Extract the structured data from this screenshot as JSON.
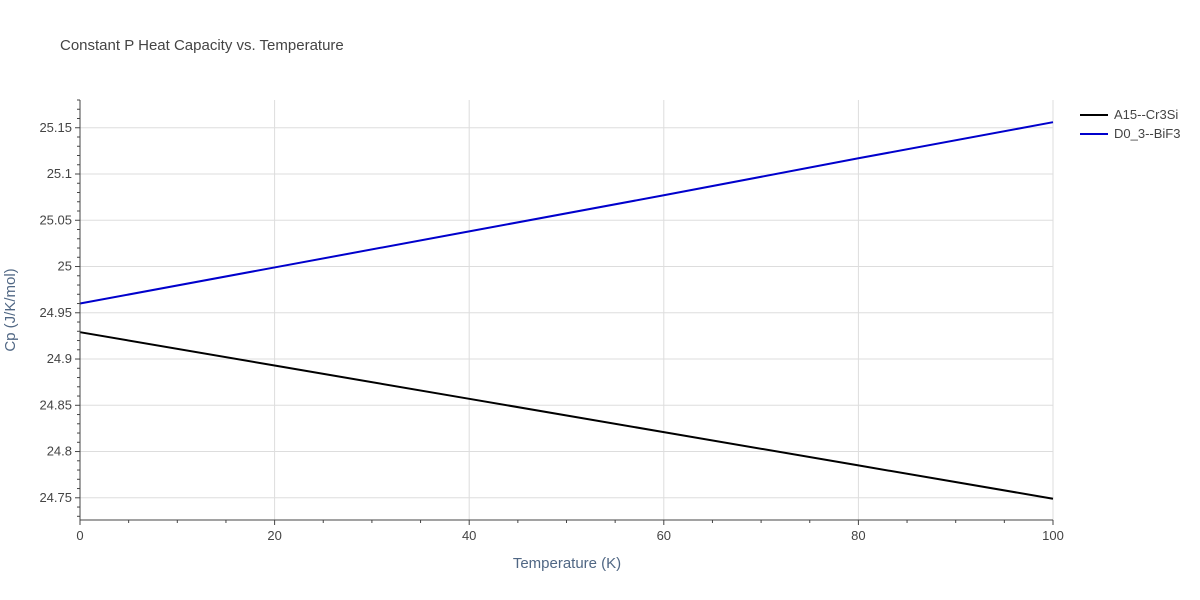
{
  "chart_data": {
    "type": "line",
    "title": "Constant P Heat Capacity vs. Temperature",
    "xlabel": "Temperature (K)",
    "ylabel": "Cp (J/K/mol)",
    "xlim": [
      0,
      100
    ],
    "ylim": [
      24.726,
      25.18
    ],
    "x_ticks": [
      0,
      20,
      40,
      60,
      80,
      100
    ],
    "x_tick_labels": [
      "0",
      "20",
      "40",
      "60",
      "80",
      "100"
    ],
    "y_ticks": [
      24.75,
      24.8,
      24.85,
      24.9,
      24.95,
      25,
      25.05,
      25.1,
      25.15
    ],
    "y_tick_labels": [
      "24.75",
      "24.8",
      "24.85",
      "24.9",
      "24.95",
      "25",
      "25.05",
      "25.1",
      "25.15"
    ],
    "grid": true,
    "legend_position": "top-right",
    "series": [
      {
        "name": "A15--Cr3Si",
        "color": "#000000",
        "x": [
          0,
          20,
          40,
          60,
          80,
          100
        ],
        "y": [
          24.929,
          24.893,
          24.857,
          24.821,
          24.785,
          24.749
        ]
      },
      {
        "name": "D0_3--BiF3",
        "color": "#0000cc",
        "x": [
          0,
          20,
          40,
          60,
          80,
          100
        ],
        "y": [
          24.96,
          24.999,
          25.038,
          25.077,
          25.117,
          25.156
        ]
      }
    ]
  }
}
